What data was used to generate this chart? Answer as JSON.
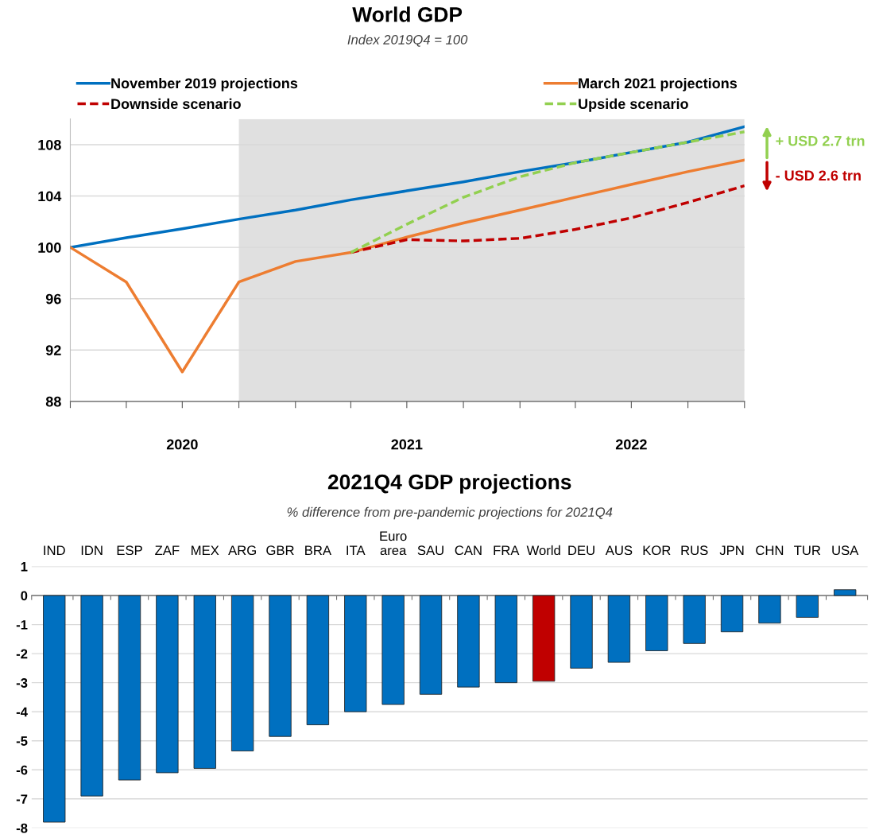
{
  "chart_data": [
    {
      "type": "line",
      "title": "World GDP",
      "subtitle": "Index 2019Q4 = 100",
      "x": [
        "2019-12-31",
        "2020-03-31",
        "2020-06-30",
        "2020-09-30",
        "2020-12-31",
        "2021-03-31",
        "2021-06-30",
        "2021-09-30",
        "2021-12-31",
        "2022-03-31",
        "2022-06-30",
        "2022-09-30",
        "2022-12-31"
      ],
      "series": [
        {
          "name": "November 2019 projections",
          "color": "#0070c0",
          "line_style": "solid",
          "values": [
            100,
            100.75,
            101.45,
            102.2,
            102.9,
            103.7,
            104.4,
            105.1,
            105.9,
            106.6,
            107.4,
            108.2,
            109.4
          ]
        },
        {
          "name": "March 2021 projections",
          "color": "#ed7d31",
          "line_style": "solid",
          "values": [
            100,
            97.3,
            90.3,
            97.3,
            98.9,
            99.6,
            100.8,
            101.9,
            102.9,
            103.9,
            104.9,
            105.9,
            106.8
          ]
        },
        {
          "name": "Downside scenario",
          "color": "#c00000",
          "line_style": "dashed",
          "values": [
            null,
            null,
            null,
            null,
            null,
            99.6,
            100.6,
            100.5,
            100.7,
            101.4,
            102.3,
            103.5,
            104.8
          ]
        },
        {
          "name": "Upside scenario",
          "color": "#92d050",
          "line_style": "dashed",
          "values": [
            null,
            null,
            null,
            null,
            null,
            99.6,
            101.8,
            103.9,
            105.5,
            106.6,
            107.4,
            108.2,
            109.0
          ]
        }
      ],
      "xlim": [
        "2019-12-31",
        "2022-12-31"
      ],
      "xticks": [
        {
          "value": "2019-12-31",
          "label": null
        },
        {
          "value": "2020-03-31",
          "label": null
        },
        {
          "value": "2020-06-30",
          "label": "2020"
        },
        {
          "value": "2020-09-30",
          "label": null
        },
        {
          "value": "2020-12-31",
          "label": null
        },
        {
          "value": "2021-03-31",
          "label": null
        },
        {
          "value": "2021-06-30",
          "label": "2021"
        },
        {
          "value": "2021-09-30",
          "label": null
        },
        {
          "value": "2021-12-31",
          "label": null
        },
        {
          "value": "2022-03-31",
          "label": null
        },
        {
          "value": "2022-06-30",
          "label": "2022"
        },
        {
          "value": "2022-09-30",
          "label": null
        },
        {
          "value": "2022-12-31",
          "label": null
        }
      ],
      "ylim": [
        88,
        110
      ],
      "yticks": [
        88,
        92,
        96,
        100,
        104,
        108
      ],
      "bands": [
        {
          "axis": "x",
          "from": "2020-09-30",
          "to": "2022-12-31",
          "color": "#e0e0e0"
        }
      ],
      "annotations": [
        {
          "text": "+ USD 2.7 trn",
          "x": "2022-12-31",
          "y": 109.6
        },
        {
          "text": "- USD 2.6 trn",
          "x": "2022-12-31",
          "y": 104.2
        }
      ],
      "grid": "y",
      "legend": "top",
      "marker": "none"
    },
    {
      "type": "bar",
      "title": "2021Q4 GDP projections",
      "subtitle": "% difference from pre-pandemic projections for 2021Q4",
      "categories": [
        "IND",
        "IDN",
        "ESP",
        "ZAF",
        "MEX",
        "ARG",
        "GBR",
        "BRA",
        "ITA",
        "Euro\narea",
        "SAU",
        "CAN",
        "FRA",
        "World",
        "DEU",
        "AUS",
        "KOR",
        "RUS",
        "JPN",
        "CHN",
        "TUR",
        "USA"
      ],
      "values": [
        -7.8,
        -6.9,
        -6.35,
        -6.1,
        -5.95,
        -5.35,
        -4.85,
        -4.45,
        -4.0,
        -3.75,
        -3.4,
        -3.15,
        -3.0,
        -2.95,
        -2.5,
        -2.3,
        -1.9,
        -1.65,
        -1.25,
        -0.95,
        -0.75,
        0.2
      ],
      "colors": [
        "#0070c0",
        "#0070c0",
        "#0070c0",
        "#0070c0",
        "#0070c0",
        "#0070c0",
        "#0070c0",
        "#0070c0",
        "#0070c0",
        "#0070c0",
        "#0070c0",
        "#0070c0",
        "#0070c0",
        "#c00000",
        "#0070c0",
        "#0070c0",
        "#0070c0",
        "#0070c0",
        "#0070c0",
        "#0070c0",
        "#0070c0",
        "#0070c0"
      ],
      "ylim": [
        -8,
        1
      ],
      "yticks": [
        -8,
        -7,
        -6,
        -5,
        -4,
        -3,
        -2,
        -1,
        0,
        1
      ],
      "grid": "y",
      "legend": false
    }
  ]
}
